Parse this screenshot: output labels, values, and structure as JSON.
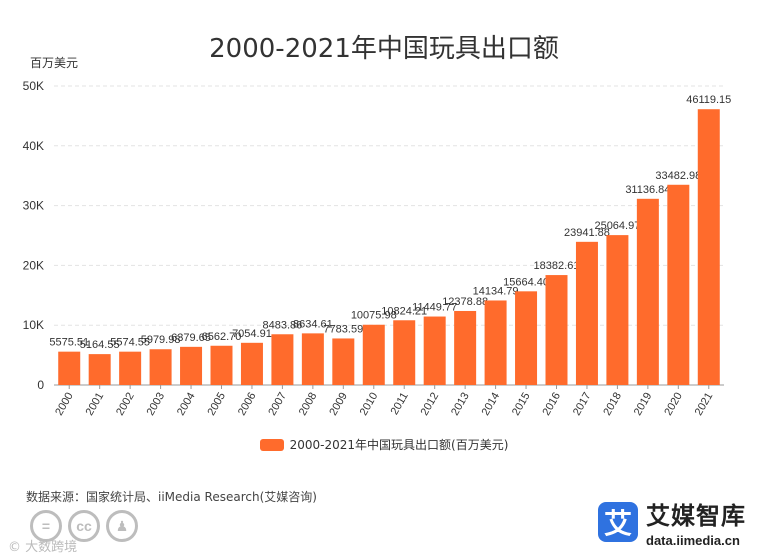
{
  "chart_data": {
    "type": "bar",
    "title": "2000-2021年中国玩具出口额",
    "ylabel": "百万美元",
    "xlabel": "",
    "ylim": [
      0,
      50000
    ],
    "yticks": [
      0,
      10000,
      20000,
      30000,
      40000,
      50000
    ],
    "ytick_labels": [
      "0",
      "10K",
      "20K",
      "30K",
      "40K",
      "50K"
    ],
    "categories": [
      "2000",
      "2001",
      "2002",
      "2003",
      "2004",
      "2005",
      "2006",
      "2007",
      "2008",
      "2009",
      "2010",
      "2011",
      "2012",
      "2013",
      "2014",
      "2015",
      "2016",
      "2017",
      "2018",
      "2019",
      "2020",
      "2021"
    ],
    "values": [
      5575.51,
      5164.55,
      5574.55,
      5979.98,
      6379.65,
      6562.7,
      7054.91,
      8483.86,
      8634.61,
      7783.59,
      10075.98,
      10824.21,
      11449.77,
      12378.88,
      14134.79,
      15664.4,
      18382.61,
      23941.88,
      25064.97,
      31136.84,
      33482.98,
      46119.15
    ],
    "data_labels": [
      "5575.51",
      "5164.55",
      "5574.55",
      "5979.98",
      "6379.65",
      "6562.70",
      "7054.91",
      "8483.86",
      "8634.61",
      "7783.59",
      "10075.98",
      "10824.21",
      "11449.77",
      "12378.88",
      "14134.79",
      "15664.40",
      "18382.61",
      "23941.88",
      "25064.97",
      "31136.84",
      "33482.98",
      "46119.15"
    ],
    "legend": "2000-2021年中国玩具出口额(百万美元)",
    "legend_position": "bottom",
    "grid": true
  },
  "colors": {
    "bar": "#ff6b2c",
    "grid": "#e3e3e3",
    "axis": "#999999",
    "brand": "#2f72e0"
  },
  "source": "数据来源：国家统计局、iiMedia Research(艾媒咨询)",
  "watermark": "© 大数跨境",
  "brand": {
    "mark": "艾",
    "name": "艾媒智库",
    "url": "data.iimedia.cn"
  }
}
